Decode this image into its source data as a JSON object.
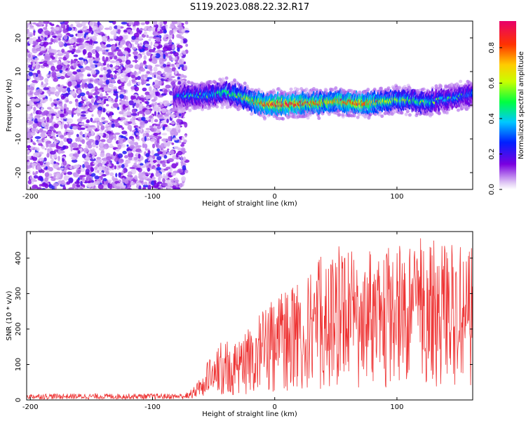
{
  "figure_title": "S119.2023.088.22.32.R17",
  "chart_data": [
    {
      "type": "heatmap",
      "xlabel": "Height of straight line (km)",
      "ylabel": "Frequency (Hz)",
      "xlim": [
        -203,
        162
      ],
      "ylim": [
        -25,
        25
      ],
      "xticks": [
        -200,
        -100,
        0,
        100
      ],
      "yticks": [
        -20,
        -10,
        0,
        10,
        20
      ],
      "colorbar": {
        "label": "Normalized spectral amplitude",
        "range": [
          0.0,
          0.95
        ],
        "ticks": [
          0.0,
          0.2,
          0.4,
          0.6,
          0.8
        ],
        "colormap": [
          "#e0c8f5",
          "#7a00e0",
          "#0020ff",
          "#00c8ff",
          "#00ff40",
          "#c8ff00",
          "#ffcc00",
          "#ff3300",
          "#e8006a"
        ]
      },
      "noise_region": {
        "x_from": -203,
        "x_to": -72,
        "amplitude_range": [
          0.02,
          0.25
        ]
      },
      "ridge": {
        "x": [
          -82,
          -70,
          -60,
          -50,
          -40,
          -30,
          -20,
          -10,
          0,
          10,
          20,
          30,
          40,
          50,
          60,
          70,
          80,
          90,
          100,
          110,
          120,
          130,
          140,
          150,
          160
        ],
        "frequency_hz": [
          2.5,
          3.0,
          2.8,
          3.2,
          3.8,
          3.0,
          1.5,
          0.5,
          0.3,
          0.4,
          0.6,
          0.5,
          0.8,
          1.2,
          1.0,
          0.6,
          0.8,
          1.2,
          1.5,
          1.5,
          0.8,
          1.2,
          2.0,
          2.5,
          3.2
        ],
        "peak_amplitude": [
          0.25,
          0.35,
          0.35,
          0.4,
          0.45,
          0.5,
          0.6,
          0.75,
          0.85,
          0.85,
          0.8,
          0.75,
          0.7,
          0.7,
          0.75,
          0.8,
          0.7,
          0.6,
          0.55,
          0.5,
          0.45,
          0.4,
          0.35,
          0.35,
          0.3
        ]
      }
    },
    {
      "type": "line",
      "xlabel": "Height of straight line (km)",
      "ylabel": "SNR (10 * v/v)",
      "xlim": [
        -203,
        162
      ],
      "ylim": [
        0,
        475
      ],
      "xticks": [
        -200,
        -100,
        0,
        100
      ],
      "yticks": [
        0,
        100,
        200,
        300,
        400
      ],
      "color": "#ee3333",
      "series": [
        {
          "x": [
            -203,
            -180,
            -160,
            -140,
            -120,
            -100,
            -80,
            -70,
            -65,
            -60,
            -55,
            -50,
            -45,
            -40,
            -35,
            -30,
            -25,
            -20,
            -15,
            -10,
            -5,
            0,
            10,
            20,
            30,
            40,
            50,
            60,
            70,
            80,
            90,
            100,
            110,
            120,
            130,
            140,
            150,
            160
          ],
          "mean": [
            10,
            10,
            10,
            10,
            10,
            10,
            10,
            12,
            20,
            35,
            50,
            70,
            80,
            85,
            80,
            90,
            100,
            110,
            120,
            130,
            135,
            150,
            170,
            180,
            200,
            210,
            220,
            230,
            220,
            225,
            230,
            225,
            230,
            225,
            230,
            225,
            220,
            220
          ],
          "envelope_max": [
            20,
            20,
            20,
            20,
            20,
            20,
            20,
            25,
            40,
            70,
            110,
            150,
            160,
            175,
            150,
            170,
            190,
            210,
            230,
            250,
            270,
            290,
            320,
            340,
            370,
            420,
            440,
            430,
            420,
            420,
            430,
            440,
            445,
            475,
            460,
            440,
            450,
            430
          ]
        }
      ]
    }
  ]
}
